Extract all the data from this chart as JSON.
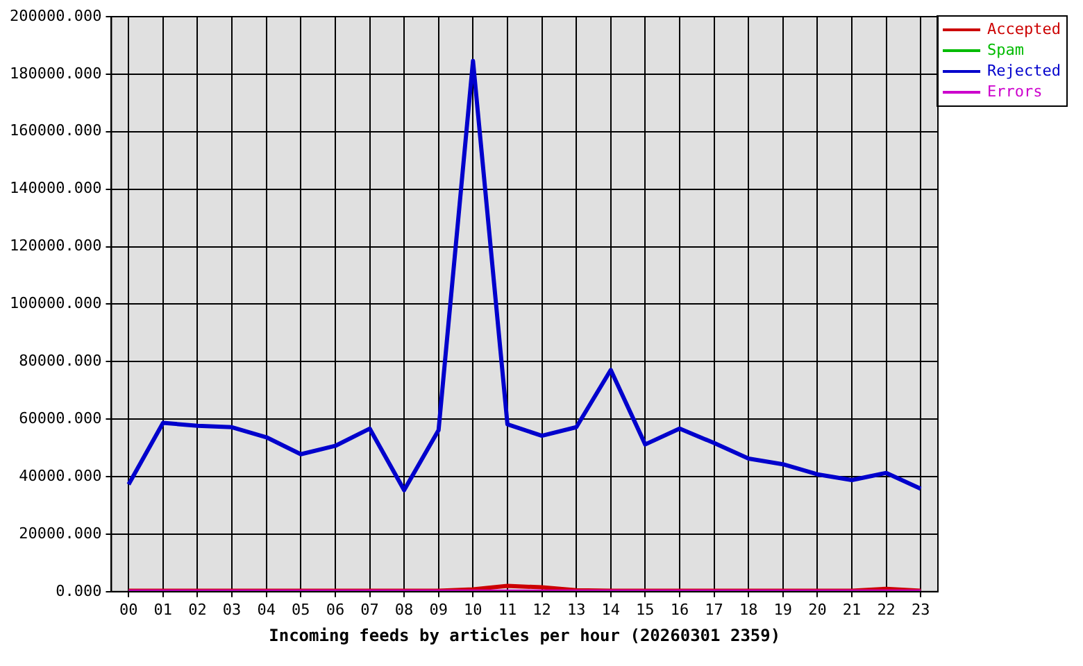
{
  "chart_data": {
    "type": "line",
    "xlabel": "Incoming feeds by articles per hour (20260301 2359)",
    "categories": [
      "00",
      "01",
      "02",
      "03",
      "04",
      "05",
      "06",
      "07",
      "08",
      "09",
      "10",
      "11",
      "12",
      "13",
      "14",
      "15",
      "16",
      "17",
      "18",
      "19",
      "20",
      "21",
      "22",
      "23"
    ],
    "series": [
      {
        "name": "Accepted",
        "color": "#cc0000",
        "values": [
          300,
          300,
          300,
          300,
          300,
          300,
          300,
          300,
          300,
          300,
          800,
          2000,
          1500,
          500,
          300,
          300,
          300,
          300,
          300,
          300,
          300,
          300,
          1000,
          300
        ]
      },
      {
        "name": "Spam",
        "color": "#00bb00",
        "values": [
          null,
          null,
          null,
          null,
          null,
          null,
          null,
          null,
          null,
          null,
          null,
          null,
          null,
          null,
          null,
          null,
          null,
          null,
          null,
          null,
          null,
          null,
          null,
          null
        ]
      },
      {
        "name": "Rejected",
        "color": "#0000cc",
        "values": [
          37300,
          58700,
          57700,
          57200,
          53700,
          47800,
          50700,
          56700,
          35300,
          56200,
          184600,
          58200,
          54200,
          57200,
          77100,
          51200,
          56700,
          51700,
          46300,
          44300,
          40800,
          38800,
          41300,
          35800
        ]
      },
      {
        "name": "Errors",
        "color": "#cc00cc",
        "values": [
          0,
          0,
          0,
          0,
          0,
          0,
          0,
          0,
          0,
          0,
          0,
          0,
          0,
          0,
          0,
          0,
          0,
          0,
          0,
          0,
          0,
          0,
          0,
          0
        ]
      }
    ],
    "ylim": [
      0,
      200000
    ],
    "yticks": [
      {
        "value": 0,
        "label": "0.000"
      },
      {
        "value": 20000,
        "label": "20000.000"
      },
      {
        "value": 40000,
        "label": "40000.000"
      },
      {
        "value": 60000,
        "label": "60000.000"
      },
      {
        "value": 80000,
        "label": "80000.000"
      },
      {
        "value": 100000,
        "label": "100000.000"
      },
      {
        "value": 120000,
        "label": "120000.000"
      },
      {
        "value": 140000,
        "label": "140000.000"
      },
      {
        "value": 160000,
        "label": "160000.000"
      },
      {
        "value": 180000,
        "label": "180000.000"
      },
      {
        "value": 200000,
        "label": "200000.000"
      }
    ],
    "grid": true,
    "legend": "top right"
  }
}
